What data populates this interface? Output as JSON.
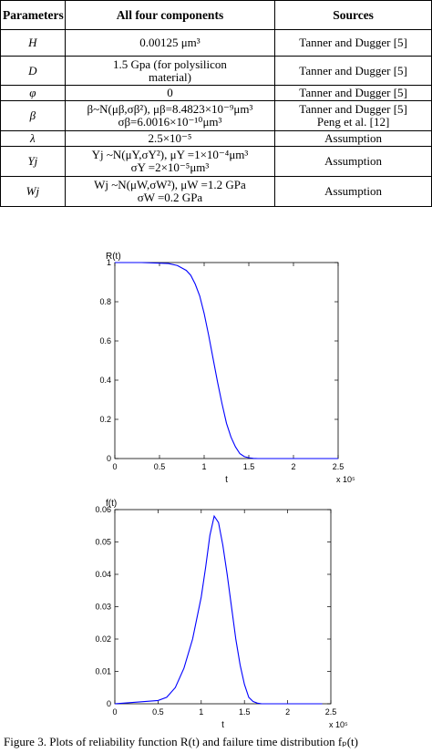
{
  "table": {
    "headers": [
      "Parameters",
      "All four components",
      "Sources"
    ],
    "rows": [
      {
        "param": "H",
        "value": "0.00125 μm³",
        "source": "Tanner and Dugger [5]"
      },
      {
        "param": "D",
        "value_line1": "1.5 Gpa (for polysilicon",
        "value_line2": "material)",
        "source": "Tanner and Dugger [5]"
      },
      {
        "param": "φ",
        "value": "0",
        "source": "Tanner and Dugger [5]"
      },
      {
        "param": "β",
        "value_line1": "β~N(μβ,σβ²), μβ=8.4823×10⁻⁹μm³",
        "value_line2": "σβ=6.0016×10⁻¹⁰μm³",
        "source_line1": "Tanner and Dugger [5]",
        "source_line2": "Peng et al. [12]"
      },
      {
        "param": "λ",
        "value": "2.5×10⁻⁵",
        "source": "Assumption"
      },
      {
        "param": "Yj",
        "value_line1": "Yj ~N(μY,σY²), μY =1×10⁻⁴μm³",
        "value_line2": "σY =2×10⁻⁵μm³",
        "source": "Assumption"
      },
      {
        "param": "Wj",
        "value_line1": "Wj ~N(μW,σW²), μW =1.2 GPa",
        "value_line2": "σW =0.2 GPa",
        "source": "Assumption"
      }
    ]
  },
  "chart_data": [
    {
      "type": "line",
      "title": "R(t)",
      "xlabel": "t",
      "x_multiplier": "x 10⁵",
      "xlim": [
        0,
        2.5
      ],
      "ylim": [
        0,
        1
      ],
      "xticks": [
        "0",
        "0.5",
        "1",
        "1.5",
        "2",
        "2.5"
      ],
      "yticks": [
        "0",
        "0.2",
        "0.4",
        "0.6",
        "0.8",
        "1"
      ],
      "series": [
        {
          "color": "#0000ff",
          "x": [
            0,
            0.3,
            0.6,
            0.7,
            0.8,
            0.85,
            0.9,
            0.95,
            1.0,
            1.05,
            1.1,
            1.15,
            1.2,
            1.25,
            1.3,
            1.35,
            1.4,
            1.45,
            1.5,
            1.55,
            1.6,
            2.0,
            2.5
          ],
          "y": [
            1,
            1,
            0.995,
            0.985,
            0.96,
            0.935,
            0.89,
            0.83,
            0.74,
            0.63,
            0.51,
            0.39,
            0.28,
            0.18,
            0.11,
            0.06,
            0.025,
            0.01,
            0.004,
            0.001,
            0,
            0,
            0
          ]
        }
      ]
    },
    {
      "type": "line",
      "title": "f(t)",
      "xlabel": "t",
      "x_multiplier": "x 10⁵",
      "xlim": [
        0,
        2.5
      ],
      "ylim": [
        0,
        0.06
      ],
      "xticks": [
        "0",
        "0.5",
        "1",
        "1.5",
        "2",
        "2.5"
      ],
      "yticks": [
        "0",
        "0.01",
        "0.02",
        "0.03",
        "0.04",
        "0.05",
        "0.06"
      ],
      "series": [
        {
          "color": "#0000ff",
          "x": [
            0,
            0.5,
            0.6,
            0.7,
            0.8,
            0.9,
            1.0,
            1.05,
            1.1,
            1.15,
            1.2,
            1.25,
            1.3,
            1.35,
            1.4,
            1.45,
            1.5,
            1.55,
            1.6,
            1.65,
            1.7,
            2.0,
            2.4
          ],
          "y": [
            0,
            0.001,
            0.002,
            0.005,
            0.011,
            0.02,
            0.033,
            0.042,
            0.052,
            0.058,
            0.056,
            0.049,
            0.04,
            0.03,
            0.02,
            0.012,
            0.006,
            0.002,
            0.0007,
            0.0002,
            0,
            0,
            0
          ]
        }
      ]
    }
  ],
  "caption": "Figure 3.    Plots of reliability function R(t) and failure time distribution fₚ(t)"
}
